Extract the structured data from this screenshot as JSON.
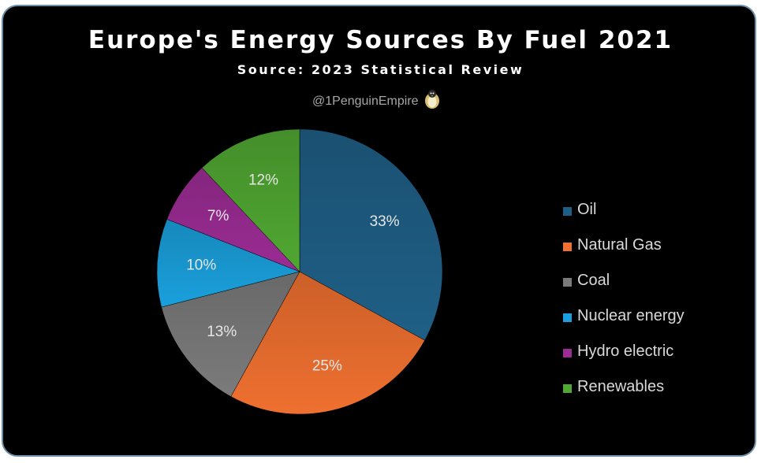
{
  "chart_data": {
    "type": "pie",
    "title": "Europe's Energy Sources By Fuel 2021",
    "subtitle": "Source: 2023 Statistical Review",
    "watermark": "@1PenguinEmpire",
    "categories": [
      "Oil",
      "Natural Gas",
      "Coal",
      "Nuclear energy",
      "Hydro electric",
      "Renewables"
    ],
    "values": [
      33,
      25,
      13,
      10,
      7,
      12
    ],
    "labels": [
      "33%",
      "25%",
      "13%",
      "10%",
      "7%",
      "12%"
    ],
    "colors": [
      "#1f5f86",
      "#ef7030",
      "#7b7b7b",
      "#1aa0dc",
      "#9b2c94",
      "#50a732"
    ],
    "legend_position": "right",
    "start_angle": "12 o'clock, clockwise"
  }
}
